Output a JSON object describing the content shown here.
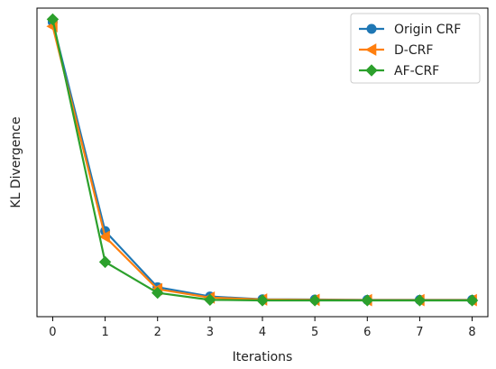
{
  "chart_data": {
    "type": "line",
    "title": "",
    "xlabel": "Iterations",
    "ylabel": "KL Divergence",
    "x": [
      0,
      1,
      2,
      3,
      4,
      5,
      6,
      7,
      8
    ],
    "xlim": [
      -0.3,
      8.3
    ],
    "ylim": [
      -0.05,
      1.05
    ],
    "y_ticks_shown": false,
    "grid": false,
    "legend_position": "top-right",
    "series": [
      {
        "name": "Origin CRF",
        "color": "#1f77b4",
        "marker": "circle",
        "values": [
          1.0,
          0.255,
          0.055,
          0.022,
          0.012,
          0.011,
          0.01,
          0.01,
          0.01
        ]
      },
      {
        "name": "D-CRF",
        "color": "#ff7f0e",
        "marker": "triangle-left",
        "values": [
          0.985,
          0.235,
          0.048,
          0.018,
          0.011,
          0.01,
          0.009,
          0.009,
          0.009
        ]
      },
      {
        "name": "AF-CRF",
        "color": "#2ca02c",
        "marker": "diamond",
        "values": [
          1.01,
          0.145,
          0.035,
          0.01,
          0.008,
          0.008,
          0.008,
          0.008,
          0.008
        ]
      }
    ]
  }
}
